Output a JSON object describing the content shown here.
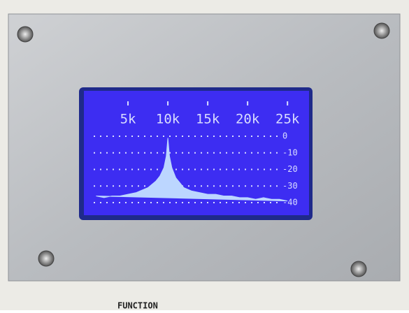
{
  "chart_data": {
    "type": "area",
    "color": "#bcd6ff",
    "x": [
      1000,
      2000,
      3000,
      4000,
      5000,
      6000,
      7000,
      7500,
      8000,
      8500,
      9000,
      9500,
      9800,
      10000,
      10200,
      10500,
      11000,
      11500,
      12000,
      13000,
      14000,
      15000,
      16000,
      17000,
      18000,
      19000,
      20000,
      21000,
      22000,
      23000,
      24000,
      25000
    ],
    "values": [
      -36,
      -37,
      -36,
      -36,
      -35,
      -34,
      -32,
      -31,
      -29,
      -27,
      -24,
      -19,
      -12,
      -1,
      -12,
      -19,
      -25,
      -28,
      -31,
      -33,
      -34,
      -35,
      -35,
      -36,
      -36,
      -37,
      -37,
      -38,
      -37,
      -38,
      -38,
      -39
    ],
    "xlim": [
      0,
      27000
    ],
    "xticks": [
      {
        "value": 5000,
        "label": "5k"
      },
      {
        "value": 10000,
        "label": "10k"
      },
      {
        "value": 15000,
        "label": "15k"
      },
      {
        "value": 20000,
        "label": "20k"
      },
      {
        "value": 25000,
        "label": "25k"
      }
    ],
    "ylim": [
      -40,
      0
    ],
    "yticks": [
      0,
      -10,
      -20,
      -30,
      -40
    ],
    "grid": true
  },
  "panel_label": "FUNCTION"
}
